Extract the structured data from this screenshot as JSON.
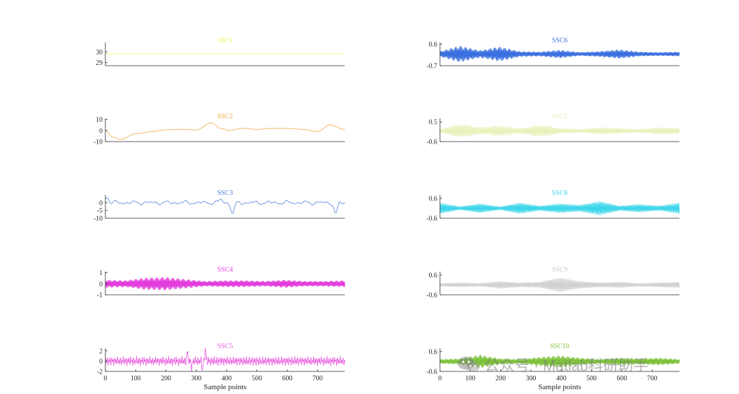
{
  "chart_data": [
    {
      "type": "line",
      "title": "SSC1",
      "color": "#f2f255",
      "yticks": [
        29,
        30
      ],
      "ylim": [
        28.7,
        30.9
      ],
      "xlim": [
        0,
        790
      ],
      "xticks": [],
      "xlabel": "",
      "signal": {
        "kind": "flat",
        "value": 29.8
      }
    },
    {
      "type": "line",
      "title": "SSC6",
      "color": "#3a6fe0",
      "yticks": [
        -0.7,
        0.6
      ],
      "ytick_labels": [
        "-0.7",
        "0.6"
      ],
      "ylim": [
        -0.7,
        0.7
      ],
      "xlim": [
        0,
        790
      ],
      "xticks": [],
      "xlabel": "",
      "signal": {
        "kind": "am",
        "amp": 0.55,
        "env": [
          0.3,
          0.9,
          0.4,
          0.8,
          0.3,
          0.25,
          0.45,
          0.2,
          0.3,
          0.5,
          0.25,
          0.2,
          0.25
        ],
        "freq": 0.9
      }
    },
    {
      "type": "line",
      "title": "SSC2",
      "color": "#f2a640",
      "yticks": [
        -10,
        0,
        10
      ],
      "ylim": [
        -10,
        11
      ],
      "xlim": [
        0,
        790
      ],
      "xticks": [],
      "xlabel": "",
      "signal": {
        "kind": "smooth",
        "points": [
          [
            0,
            0
          ],
          [
            25,
            -6
          ],
          [
            50,
            -8
          ],
          [
            100,
            -3
          ],
          [
            150,
            -1
          ],
          [
            200,
            0.5
          ],
          [
            250,
            1
          ],
          [
            300,
            0.5
          ],
          [
            350,
            7
          ],
          [
            380,
            2
          ],
          [
            410,
            0
          ],
          [
            450,
            2
          ],
          [
            500,
            1
          ],
          [
            550,
            2
          ],
          [
            600,
            2
          ],
          [
            650,
            1
          ],
          [
            700,
            -1
          ],
          [
            740,
            5
          ],
          [
            790,
            1
          ]
        ]
      }
    },
    {
      "type": "line",
      "title": "SSC7",
      "color": "#e6f2b8",
      "yticks": [
        -0.6,
        0.5
      ],
      "ytick_labels": [
        "-0.6",
        "0.5"
      ],
      "ylim": [
        -0.6,
        0.7
      ],
      "xlim": [
        0,
        790
      ],
      "xticks": [],
      "xlabel": "",
      "signal": {
        "kind": "am",
        "amp": 0.5,
        "env": [
          0.2,
          0.8,
          0.4,
          0.6,
          0.3,
          0.7,
          0.3,
          0.2,
          0.4,
          0.3,
          0.2,
          0.4,
          0.3
        ],
        "freq": 0.7
      }
    },
    {
      "type": "line",
      "title": "SSC3",
      "color": "#4a7fd9",
      "yticks": [
        -10,
        -5,
        0
      ],
      "ylim": [
        -10,
        5
      ],
      "xlim": [
        0,
        790
      ],
      "xticks": [],
      "xlabel": "",
      "signal": {
        "kind": "wiggle",
        "amp": 1.2,
        "spikes": [
          [
            420,
            -7
          ],
          [
            760,
            -7
          ],
          [
            5,
            4
          ],
          [
            380,
            2
          ]
        ]
      }
    },
    {
      "type": "line",
      "title": "SSC8",
      "color": "#3cd6ea",
      "yticks": [
        -0.6,
        0.6
      ],
      "ytick_labels": [
        "-0.6",
        "0.6"
      ],
      "ylim": [
        -0.6,
        0.8
      ],
      "xlim": [
        0,
        790
      ],
      "xticks": [],
      "xlabel": "",
      "signal": {
        "kind": "am",
        "amp": 0.5,
        "env": [
          0.7,
          0.2,
          0.6,
          0.2,
          0.7,
          0.3,
          0.6,
          0.4,
          0.9,
          0.3,
          0.5,
          0.3,
          0.7
        ],
        "freq": 0.8
      }
    },
    {
      "type": "line",
      "title": "SSC4",
      "color": "#e23cdc",
      "yticks": [
        -1,
        0,
        1
      ],
      "ylim": [
        -1,
        1.1
      ],
      "xlim": [
        0,
        790
      ],
      "xticks": [],
      "xlabel": "",
      "signal": {
        "kind": "am",
        "amp": 0.6,
        "env": [
          0.6,
          0.5,
          0.9,
          1.0,
          0.7,
          0.4,
          0.5,
          0.5,
          0.4,
          0.6,
          0.4,
          0.4,
          0.5
        ],
        "freq": 1.0
      }
    },
    {
      "type": "line",
      "title": "SSC9",
      "color": "#c9c9c9",
      "yticks": [
        -0.6,
        0.6
      ],
      "ytick_labels": [
        "-0.6",
        "0.6"
      ],
      "ylim": [
        -0.6,
        0.8
      ],
      "xlim": [
        0,
        790
      ],
      "xticks": [],
      "xlabel": "",
      "signal": {
        "kind": "am",
        "amp": 0.45,
        "env": [
          0.2,
          0.3,
          0.2,
          0.5,
          0.3,
          0.4,
          1.0,
          0.5,
          0.3,
          0.4,
          0.2,
          0.3,
          0.4
        ],
        "freq": 0.6
      }
    },
    {
      "type": "line",
      "title": "SSC5",
      "color": "#ea5ae0",
      "yticks": [
        -2,
        0,
        2
      ],
      "ylim": [
        -2,
        2.5
      ],
      "xlim": [
        0,
        790
      ],
      "xticks": [
        0,
        100,
        200,
        300,
        400,
        500,
        600,
        700
      ],
      "xlabel": "Sample points",
      "signal": {
        "kind": "noise",
        "amp": 0.9,
        "spikes": [
          [
            270,
            1.8
          ],
          [
            330,
            2.2
          ],
          [
            320,
            -1.6
          ],
          [
            285,
            -1.5
          ]
        ]
      }
    },
    {
      "type": "line",
      "title": "SSC10",
      "color": "#7ec23c",
      "yticks": [
        -0.6,
        0.6
      ],
      "ytick_labels": [
        "-0.6",
        "0.6"
      ],
      "ylim": [
        -0.6,
        0.8
      ],
      "xlim": [
        0,
        790
      ],
      "xticks": [
        0,
        100,
        200,
        300,
        400,
        500,
        600,
        700
      ],
      "xlabel": "Sample points",
      "signal": {
        "kind": "am",
        "amp": 0.45,
        "env": [
          0.3,
          0.4,
          0.9,
          0.4,
          0.3,
          0.6,
          0.8,
          0.5,
          0.3,
          0.5,
          0.4,
          0.5,
          0.3
        ],
        "freq": 0.9
      }
    }
  ],
  "watermark": {
    "text": "公众号 · Matlab科研助手"
  }
}
